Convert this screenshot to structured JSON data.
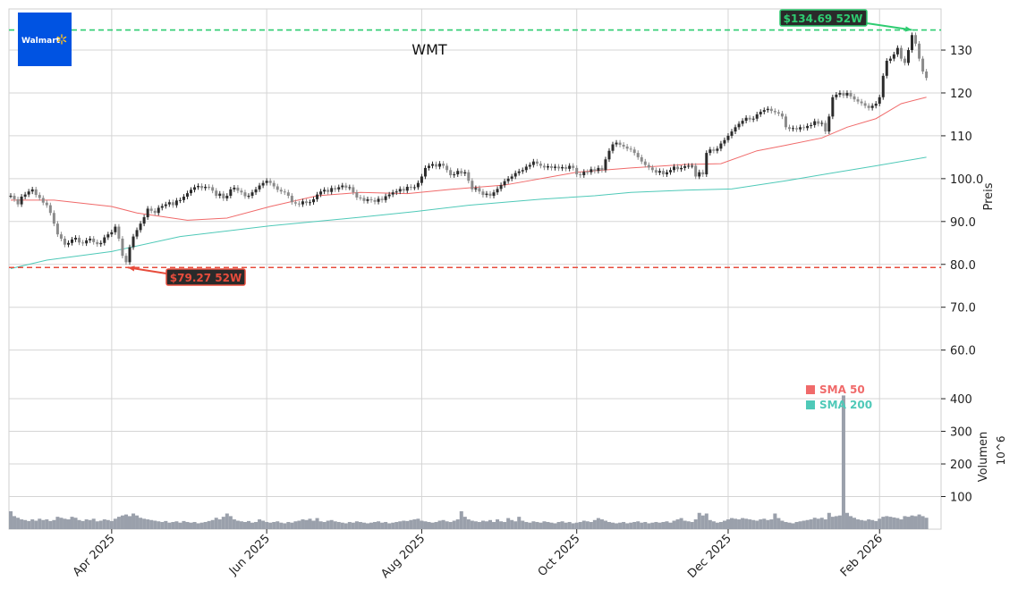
{
  "logo": {
    "text": "Walmart",
    "bg": "#0053e2",
    "spark": "#ffc220"
  },
  "chart_data": {
    "type": "candlestick",
    "title": "WMT",
    "ylabel_price": "Preis",
    "ylabel_volume": "Volumen",
    "volume_unit": "10^6",
    "price_ylim": [
      52,
      139.6
    ],
    "volume_ylim": [
      0,
      444
    ],
    "price_ticks": [
      "60.0",
      "70.0",
      "80.0",
      "90.0",
      "100.0",
      "110",
      "120",
      "130"
    ],
    "price_tick_values": [
      60,
      70,
      80,
      90,
      100,
      110,
      120,
      130
    ],
    "volume_ticks": [
      "100",
      "200",
      "300",
      "400"
    ],
    "volume_tick_values": [
      100,
      200,
      300,
      400
    ],
    "x_ticks": [
      "Apr 2025",
      "Jun 2025",
      "Aug 2025",
      "Oct 2025",
      "Dec 2025",
      "Feb 2026"
    ],
    "x_tick_bar_index": [
      28,
      71,
      114,
      157,
      199,
      241
    ],
    "grid": true,
    "legend_placement": "lower-right of price panel",
    "colors": {
      "up": "#2b2b2b",
      "down": "#8a8a8a",
      "volume": "#9aa0ab",
      "sma50": "#f06a6a",
      "sma200": "#4fc9b8",
      "high": "#2ecc71",
      "low": "#e74c3c"
    },
    "close": [
      96,
      95.2,
      94.0,
      95.8,
      96.3,
      97.0,
      97.5,
      96.2,
      95.5,
      94.4,
      93.8,
      92.0,
      89.5,
      87.0,
      86.0,
      84.6,
      85.0,
      85.8,
      86.2,
      85.1,
      84.9,
      85.6,
      86.0,
      85.2,
      84.7,
      85.0,
      86.3,
      87.0,
      87.5,
      88.8,
      86.0,
      82.0,
      80.5,
      84.0,
      86.5,
      88.0,
      89.5,
      91.0,
      93.0,
      92.5,
      92.0,
      93.2,
      93.6,
      94.0,
      94.5,
      93.8,
      94.9,
      95.0,
      95.8,
      96.6,
      97.4,
      98.0,
      98.3,
      97.8,
      98.1,
      98.0,
      97.2,
      96.0,
      96.5,
      95.4,
      96.0,
      97.5,
      97.9,
      97.2,
      96.8,
      95.9,
      96.0,
      96.8,
      97.5,
      98.4,
      99.0,
      99.5,
      99.0,
      98.2,
      97.4,
      97.0,
      96.8,
      96.0,
      94.5,
      94.2,
      94.0,
      94.7,
      94.3,
      94.5,
      95.2,
      96.3,
      97.0,
      97.4,
      96.9,
      97.8,
      97.5,
      98.0,
      98.4,
      97.9,
      98.0,
      96.8,
      95.6,
      95.5,
      94.8,
      95.2,
      95.0,
      94.6,
      95.3,
      95.0,
      95.9,
      96.3,
      96.8,
      97.0,
      97.6,
      97.2,
      98.1,
      97.9,
      98.0,
      99.0,
      100.5,
      102.5,
      103.0,
      103.4,
      102.8,
      103.5,
      103.0,
      102.0,
      100.8,
      101.0,
      101.8,
      101.2,
      101.5,
      99.5,
      97.5,
      97.8,
      97.0,
      96.2,
      96.5,
      96.0,
      96.8,
      97.6,
      98.5,
      99.4,
      100.0,
      100.5,
      101.3,
      101.7,
      102.0,
      102.8,
      103.2,
      104.0,
      103.5,
      103.0,
      102.6,
      102.9,
      102.5,
      102.8,
      102.4,
      102.7,
      102.3,
      103.0,
      102.5,
      101.0,
      100.8,
      101.6,
      101.5,
      102.2,
      101.8,
      102.5,
      102.0,
      104.5,
      106.5,
      108.0,
      108.4,
      107.9,
      107.5,
      107.0,
      106.8,
      106.0,
      105.0,
      104.0,
      103.2,
      102.6,
      102.0,
      101.4,
      101.8,
      101.0,
      101.5,
      102.0,
      102.8,
      102.2,
      102.5,
      102.9,
      103.0,
      103.0,
      100.5,
      101.5,
      101.0,
      106.0,
      106.8,
      106.5,
      107.0,
      108.2,
      109.0,
      110.0,
      111.0,
      112.0,
      112.8,
      113.5,
      114.2,
      113.8,
      114.0,
      115.0,
      115.6,
      116.0,
      116.3,
      115.8,
      115.5,
      115.2,
      114.5,
      112.0,
      111.6,
      111.8,
      111.5,
      112.0,
      111.8,
      112.3,
      112.5,
      113.4,
      112.8,
      113.0,
      111.0,
      114.5,
      119.0,
      119.6,
      120.0,
      119.4,
      120.0,
      119.2,
      118.5,
      118.0,
      117.6,
      117.0,
      116.5,
      117.0,
      117.5,
      119.0,
      124.0,
      127.5,
      128.0,
      129.0,
      130.5,
      128.0,
      127.0,
      130.0,
      133.5,
      131.5,
      128.0,
      125.0,
      123.5
    ],
    "volume": [
      55,
      40,
      35,
      30,
      28,
      25,
      30,
      26,
      32,
      28,
      30,
      25,
      28,
      38,
      35,
      32,
      30,
      38,
      35,
      28,
      25,
      30,
      28,
      32,
      24,
      26,
      30,
      28,
      25,
      32,
      38,
      42,
      45,
      40,
      48,
      42,
      35,
      32,
      30,
      28,
      26,
      24,
      22,
      25,
      20,
      22,
      24,
      20,
      25,
      22,
      20,
      22,
      18,
      20,
      22,
      25,
      28,
      35,
      30,
      38,
      48,
      40,
      30,
      26,
      24,
      22,
      25,
      20,
      22,
      30,
      26,
      22,
      20,
      22,
      24,
      20,
      18,
      22,
      20,
      24,
      26,
      30,
      28,
      32,
      26,
      34,
      24,
      22,
      26,
      28,
      24,
      22,
      20,
      18,
      22,
      20,
      24,
      22,
      20,
      18,
      20,
      22,
      24,
      20,
      22,
      18,
      20,
      22,
      24,
      26,
      25,
      28,
      30,
      32,
      26,
      24,
      22,
      20,
      22,
      26,
      28,
      24,
      22,
      26,
      30,
      55,
      38,
      30,
      26,
      24,
      22,
      26,
      24,
      28,
      22,
      30,
      24,
      22,
      34,
      28,
      24,
      38,
      26,
      22,
      20,
      24,
      22,
      20,
      24,
      22,
      20,
      18,
      22,
      24,
      20,
      22,
      18,
      20,
      22,
      26,
      24,
      22,
      28,
      34,
      30,
      26,
      22,
      20,
      18,
      20,
      22,
      18,
      20,
      22,
      24,
      20,
      22,
      18,
      20,
      22,
      20,
      22,
      24,
      20,
      26,
      30,
      34,
      26,
      24,
      22,
      30,
      50,
      42,
      48,
      28,
      24,
      20,
      22,
      26,
      30,
      34,
      32,
      30,
      34,
      32,
      30,
      28,
      26,
      30,
      32,
      28,
      30,
      48,
      34,
      26,
      22,
      20,
      18,
      22,
      24,
      26,
      28,
      30,
      35,
      32,
      35,
      30,
      50,
      38,
      40,
      42,
      410,
      50,
      40,
      35,
      30,
      28,
      26,
      30,
      28,
      25,
      32,
      38,
      40,
      38,
      36,
      34,
      30,
      40,
      38,
      42,
      40,
      45,
      40,
      35
    ],
    "series": [
      {
        "name": "SMA 50",
        "points": [
          [
            0,
            95
          ],
          [
            12,
            95
          ],
          [
            28,
            93.5
          ],
          [
            35,
            92
          ],
          [
            49,
            90.3
          ],
          [
            60,
            90.8
          ],
          [
            72,
            93.5
          ],
          [
            85,
            96
          ],
          [
            97,
            96.8
          ],
          [
            110,
            96.5
          ],
          [
            122,
            97.5
          ],
          [
            137,
            98.5
          ],
          [
            157,
            101.5
          ],
          [
            172,
            102.5
          ],
          [
            187,
            103.3
          ],
          [
            197,
            103.5
          ],
          [
            207,
            106.5
          ],
          [
            215,
            107.8
          ],
          [
            225,
            109.5
          ],
          [
            232,
            112
          ],
          [
            240,
            114
          ],
          [
            247,
            117.5
          ],
          [
            254,
            119
          ]
        ]
      },
      {
        "name": "SMA 200",
        "points": [
          [
            0,
            79
          ],
          [
            10,
            81
          ],
          [
            28,
            83
          ],
          [
            47,
            86.5
          ],
          [
            72,
            89
          ],
          [
            97,
            91
          ],
          [
            112,
            92.3
          ],
          [
            127,
            93.8
          ],
          [
            147,
            95.2
          ],
          [
            162,
            96
          ],
          [
            172,
            96.8
          ],
          [
            187,
            97.3
          ],
          [
            200,
            97.6
          ],
          [
            215,
            99.5
          ],
          [
            227,
            101.2
          ],
          [
            240,
            103
          ],
          [
            254,
            105
          ]
        ]
      }
    ],
    "annotations": {
      "high_52w": {
        "label": "$134.69 52W",
        "value": 134.69,
        "bar_index": 250
      },
      "low_52w": {
        "label": "$79.27 52W",
        "value": 79.27,
        "bar_index": 32
      }
    }
  }
}
